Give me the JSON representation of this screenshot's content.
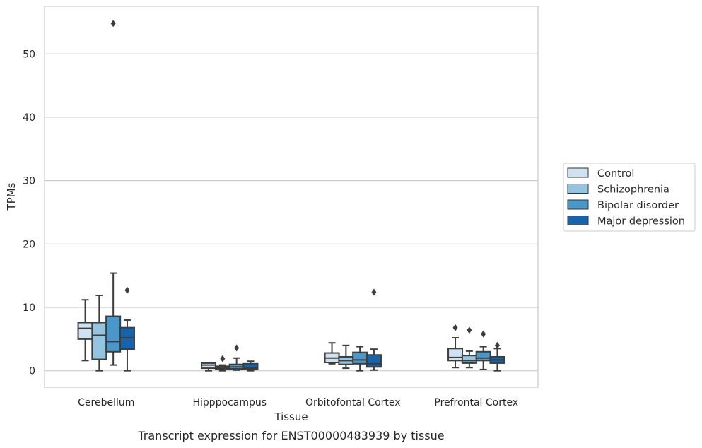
{
  "chart_data": {
    "type": "box",
    "xlabel": "Tissue",
    "ylabel": "TPMs",
    "caption": "Transcript expression for ENST00000483939 by tissue",
    "ylim": [
      -2.6,
      57.5
    ],
    "yticks": [
      0,
      10,
      20,
      30,
      40,
      50
    ],
    "grid": "horizontal",
    "legend_placement": "right",
    "categories": [
      "Cerebellum",
      "Hipppocampus",
      "Orbitofontal Cortex",
      "Prefrontal Cortex"
    ],
    "series": [
      {
        "name": "Control",
        "color": "#d0e1f2",
        "boxes": [
          {
            "whisker_low": 1.6,
            "q1": 5.0,
            "median": 6.7,
            "q3": 7.6,
            "whisker_high": 11.2,
            "outliers": []
          },
          {
            "whisker_low": 0.0,
            "q1": 0.4,
            "median": 0.9,
            "q3": 1.2,
            "whisker_high": 1.3,
            "outliers": []
          },
          {
            "whisker_low": 1.1,
            "q1": 1.3,
            "median": 2.0,
            "q3": 2.8,
            "whisker_high": 4.4,
            "outliers": []
          },
          {
            "whisker_low": 0.5,
            "q1": 1.6,
            "median": 2.1,
            "q3": 3.5,
            "whisker_high": 5.2,
            "outliers": [
              6.8
            ]
          }
        ]
      },
      {
        "name": "Schizophrenia",
        "color": "#94c4df",
        "boxes": [
          {
            "whisker_low": 0.0,
            "q1": 1.8,
            "median": 5.6,
            "q3": 7.6,
            "whisker_high": 11.9,
            "outliers": []
          },
          {
            "whisker_low": 0.0,
            "q1": 0.3,
            "median": 0.5,
            "q3": 0.7,
            "whisker_high": 0.9,
            "outliers": [
              1.9
            ]
          },
          {
            "whisker_low": 0.4,
            "q1": 1.0,
            "median": 1.6,
            "q3": 2.2,
            "whisker_high": 4.0,
            "outliers": []
          },
          {
            "whisker_low": 0.5,
            "q1": 1.2,
            "median": 1.6,
            "q3": 2.4,
            "whisker_high": 3.1,
            "outliers": [
              6.4
            ]
          }
        ]
      },
      {
        "name": "Bipolar disorder",
        "color": "#4a98c9",
        "boxes": [
          {
            "whisker_low": 0.9,
            "q1": 3.0,
            "median": 4.6,
            "q3": 8.6,
            "whisker_high": 15.4,
            "outliers": [
              54.8
            ]
          },
          {
            "whisker_low": 0.1,
            "q1": 0.3,
            "median": 0.6,
            "q3": 1.0,
            "whisker_high": 2.0,
            "outliers": [
              3.6
            ]
          },
          {
            "whisker_low": 0.0,
            "q1": 1.1,
            "median": 1.7,
            "q3": 2.9,
            "whisker_high": 3.8,
            "outliers": []
          },
          {
            "whisker_low": 0.2,
            "q1": 1.6,
            "median": 2.0,
            "q3": 3.0,
            "whisker_high": 3.8,
            "outliers": [
              5.8
            ]
          }
        ]
      },
      {
        "name": "Major depression",
        "color": "#1764ab",
        "boxes": [
          {
            "whisker_low": 0.0,
            "q1": 3.4,
            "median": 5.2,
            "q3": 6.8,
            "whisker_high": 8.0,
            "outliers": [
              12.7
            ]
          },
          {
            "whisker_low": 0.0,
            "q1": 0.3,
            "median": 0.5,
            "q3": 1.1,
            "whisker_high": 1.5,
            "outliers": []
          },
          {
            "whisker_low": 0.1,
            "q1": 0.6,
            "median": 1.1,
            "q3": 2.5,
            "whisker_high": 3.4,
            "outliers": [
              12.4
            ]
          },
          {
            "whisker_low": 0.0,
            "q1": 1.2,
            "median": 1.7,
            "q3": 2.2,
            "whisker_high": 3.5,
            "outliers": [
              4.0
            ]
          }
        ]
      }
    ]
  }
}
